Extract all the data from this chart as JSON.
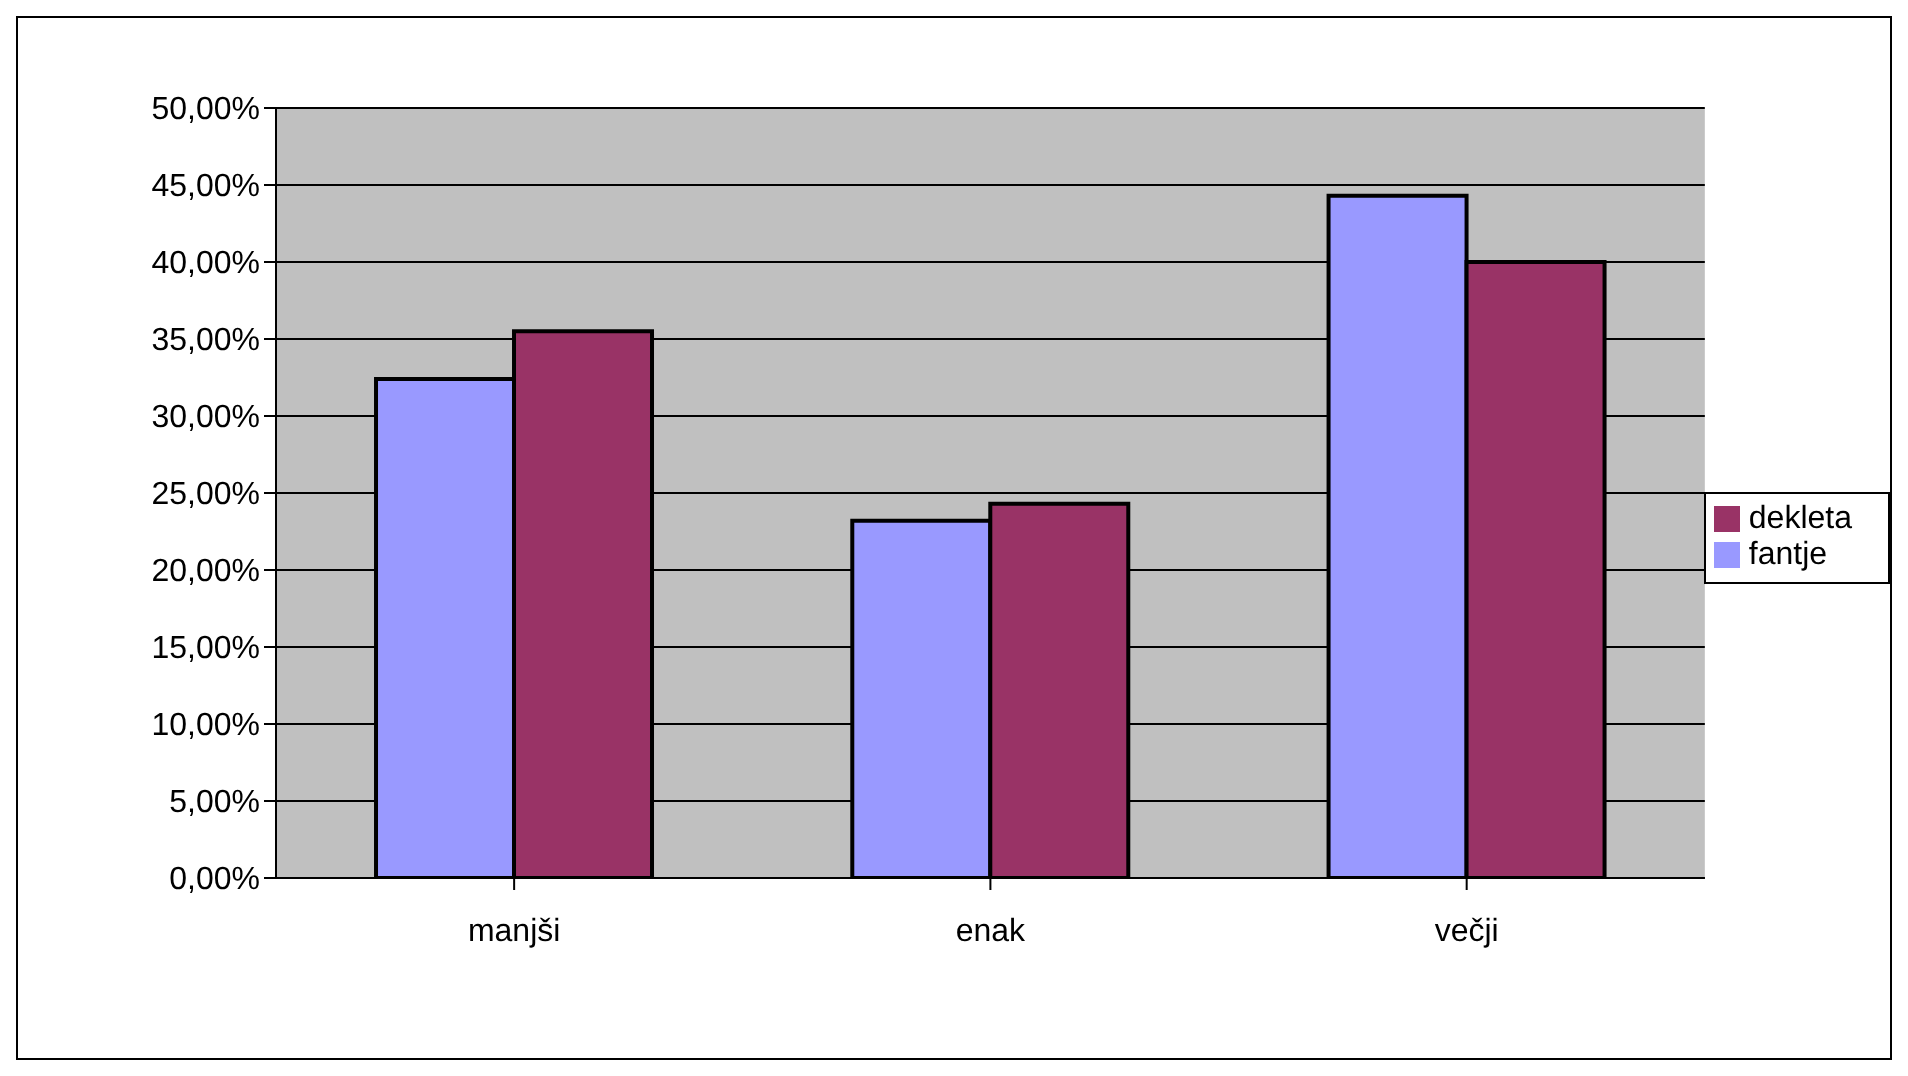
{
  "chart_data": {
    "type": "bar",
    "categories": [
      "manjši",
      "enak",
      "večji"
    ],
    "series": [
      {
        "name": "fantje",
        "color": "#9999ff",
        "values": [
          32.4,
          23.2,
          44.3
        ]
      },
      {
        "name": "dekleta",
        "color": "#993366",
        "values": [
          35.5,
          24.3,
          40.0
        ]
      }
    ],
    "ylim": [
      0,
      50
    ],
    "yticks": [
      {
        "value": 0,
        "label": "0,00%"
      },
      {
        "value": 5,
        "label": "5,00%"
      },
      {
        "value": 10,
        "label": "10,00%"
      },
      {
        "value": 15,
        "label": "15,00%"
      },
      {
        "value": 20,
        "label": "20,00%"
      },
      {
        "value": 25,
        "label": "25,00%"
      },
      {
        "value": 30,
        "label": "30,00%"
      },
      {
        "value": 35,
        "label": "35,00%"
      },
      {
        "value": 40,
        "label": "40,00%"
      },
      {
        "value": 45,
        "label": "45,00%"
      },
      {
        "value": 50,
        "label": "50,00%"
      }
    ],
    "grid": "y",
    "legend": "right"
  }
}
